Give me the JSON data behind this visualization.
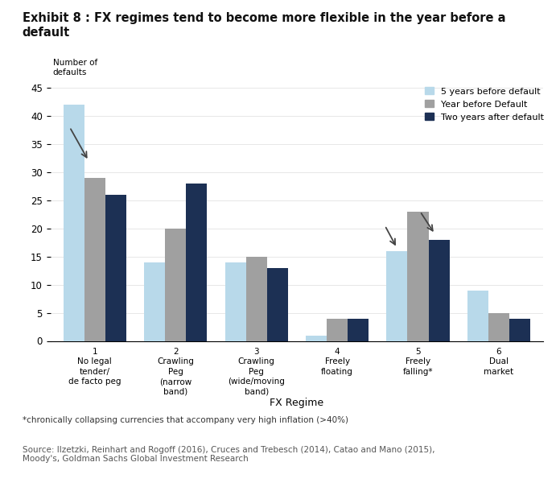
{
  "title_line1": "Exhibit 8 : FX regimes tend to become more flexible in the year before a",
  "title_line2": "default",
  "categories": [
    "1\nNo legal\ntender/\nde facto peg",
    "2\nCrawling\nPeg\n(narrow\nband)",
    "3\nCrawling\nPeg\n(wide/moving\nband)",
    "4\nFreely\nfloating",
    "5\nFreely\nfalling*",
    "6\nDual\nmarket"
  ],
  "series": {
    "5 years before default": [
      42,
      14,
      14,
      1,
      16,
      9
    ],
    "Year before Default": [
      29,
      20,
      15,
      4,
      23,
      5
    ],
    "Two years after default": [
      26,
      28,
      13,
      4,
      18,
      4
    ]
  },
  "colors": {
    "5 years before default": "#b8d9ea",
    "Year before Default": "#a0a0a0",
    "Two years after default": "#1c3054"
  },
  "xlabel": "FX Regime",
  "ylim": [
    0,
    45
  ],
  "yticks": [
    0,
    5,
    10,
    15,
    20,
    25,
    30,
    35,
    40,
    45
  ],
  "background_color": "#ffffff",
  "footnote": "*chronically collapsing currencies that accompany very high inflation (>40%)",
  "source": "Source: Ilzetzki, Reinhart and Rogoff (2016), Cruces and Trebesch (2014), Catao and Mano (2015),\nMoody's, Goldman Sachs Global Investment Research",
  "bar_width": 0.26
}
